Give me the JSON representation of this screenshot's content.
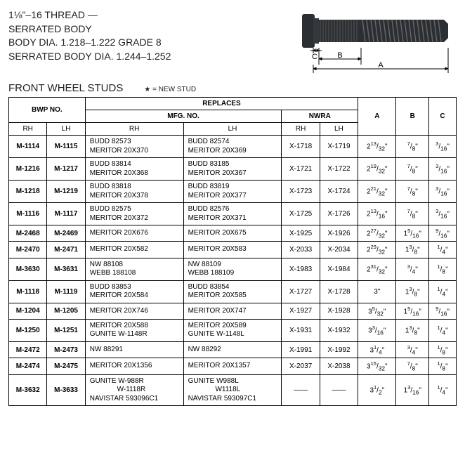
{
  "spec": {
    "line1": "1⅛\"–16 THREAD —",
    "line2": "SERRATED BODY",
    "line3": "BODY DIA. 1.218–1.222    GRADE 8",
    "line4": "SERRATED BODY DIA. 1.244–1.252"
  },
  "image": {
    "body_color": "#2b2f33",
    "highlight": "#4a4f55",
    "label_a": "A",
    "label_b": "B",
    "label_c": "C",
    "label_fontsize": 12
  },
  "section_title": "FRONT WHEEL STUDS",
  "legend": "★ = NEW STUD",
  "headers": {
    "replaces": "REPLACES",
    "bwp": "BWP NO.",
    "mfg": "MFG. NO.",
    "nwra": "NWRA",
    "rh": "RH",
    "lh": "LH",
    "a": "A",
    "b": "B",
    "c": "C"
  },
  "rows": [
    {
      "bwp_rh": "M-1114",
      "bwp_lh": "M-1115",
      "mfg_rh": "BUDD 82573\nMERITOR 20X370",
      "mfg_lh": "BUDD 82574\nMERITOR 20X369",
      "nwra_rh": "X-1718",
      "nwra_lh": "X-1719",
      "a": "2<sup>13</sup>/<sub>32</sub>\"",
      "b": "<sup>7</sup>/<sub>8</sub>\"",
      "c": "<sup>3</sup>/<sub>16</sub>\""
    },
    {
      "bwp_rh": "M-1216",
      "bwp_lh": "M-1217",
      "mfg_rh": "BUDD 83814\nMERITOR 20X368",
      "mfg_lh": "BUDD 83185\nMERITOR 20X367",
      "nwra_rh": "X-1721",
      "nwra_lh": "X-1722",
      "a": "2<sup>19</sup>/<sub>32</sub>\"",
      "b": "<sup>7</sup>/<sub>8</sub>\"",
      "c": "<sup>3</sup>/<sub>16</sub>\""
    },
    {
      "bwp_rh": "M-1218",
      "bwp_lh": "M-1219",
      "mfg_rh": "BUDD 83818\nMERITOR 20X378",
      "mfg_lh": "BUDD 83819\nMERITOR 20X377",
      "nwra_rh": "X-1723",
      "nwra_lh": "X-1724",
      "a": "2<sup>21</sup>/<sub>32</sub>\"",
      "b": "<sup>7</sup>/<sub>8</sub>\"",
      "c": "<sup>3</sup>/<sub>16</sub>\""
    },
    {
      "bwp_rh": "M-1116",
      "bwp_lh": "M-1117",
      "mfg_rh": "BUDD 82575\nMERITOR 20X372",
      "mfg_lh": "BUDD 82576\nMERITOR 20X371",
      "nwra_rh": "X-1725",
      "nwra_lh": "X-1726",
      "a": "2<sup>13</sup>/<sub>16</sub>\"",
      "b": "<sup>7</sup>/<sub>8</sub>\"",
      "c": "<sup>3</sup>/<sub>16</sub>\""
    },
    {
      "bwp_rh": "M-2468",
      "bwp_lh": "M-2469",
      "mfg_rh": "MERITOR 20X676",
      "mfg_lh": "MERITOR 20X675",
      "nwra_rh": "X-1925",
      "nwra_lh": "X-1926",
      "a": "2<sup>27</sup>/<sub>32</sub>\"",
      "b": "1<sup>5</sup>/<sub>16</sub>\"",
      "c": "<sup>9</sup>/<sub>16</sub>\""
    },
    {
      "bwp_rh": "M-2470",
      "bwp_lh": "M-2471",
      "mfg_rh": "MERITOR 20X582",
      "mfg_lh": "MERITOR 20X583",
      "nwra_rh": "X-2033",
      "nwra_lh": "X-2034",
      "a": "2<sup>29</sup>/<sub>32</sub>\"",
      "b": "1<sup>3</sup>/<sub>8</sub>\"",
      "c": "<sup>1</sup>/<sub>4</sub>\""
    },
    {
      "bwp_rh": "M-3630",
      "bwp_lh": "M-3631",
      "mfg_rh": "NW 88108\nWEBB 188108",
      "mfg_lh": "NW 88109\nWEBB 188109",
      "nwra_rh": "X-1983",
      "nwra_lh": "X-1984",
      "a": "2<sup>31</sup>/<sub>32</sub>\"",
      "b": "<sup>3</sup>/<sub>4</sub>\"",
      "c": "<sup>1</sup>/<sub>8</sub>\""
    },
    {
      "bwp_rh": "M-1118",
      "bwp_lh": "M-1119",
      "mfg_rh": "BUDD 83853\nMERITOR 20X584",
      "mfg_lh": "BUDD 83854\nMERITOR 20X585",
      "nwra_rh": "X-1727",
      "nwra_lh": "X-1728",
      "a": "3\"",
      "b": "1<sup>3</sup>/<sub>8</sub>\"",
      "c": "<sup>1</sup>/<sub>4</sub>\""
    },
    {
      "bwp_rh": "M-1204",
      "bwp_lh": "M-1205",
      "mfg_rh": "MERITOR 20X746",
      "mfg_lh": "MERITOR 20X747",
      "nwra_rh": "X-1927",
      "nwra_lh": "X-1928",
      "a": "3<sup>5</sup>/<sub>32</sub>\"",
      "b": "1<sup>5</sup>/<sub>16</sub>\"",
      "c": "<sup>9</sup>/<sub>16</sub>\""
    },
    {
      "bwp_rh": "M-1250",
      "bwp_lh": "M-1251",
      "mfg_rh": "MERITOR 20X588\nGUNITE W-1148R",
      "mfg_lh": "MERITOR 20X589\nGUNITE W-1148L",
      "nwra_rh": "X-1931",
      "nwra_lh": "X-1932",
      "a": "3<sup>3</sup>/<sub>16</sub>\"",
      "b": "1<sup>3</sup>/<sub>8</sub>\"",
      "c": "<sup>1</sup>/<sub>4</sub>\""
    },
    {
      "bwp_rh": "M-2472",
      "bwp_lh": "M-2473",
      "mfg_rh": "NW 88291",
      "mfg_lh": "NW 88292",
      "nwra_rh": "X-1991",
      "nwra_lh": "X-1992",
      "a": "3<sup>1</sup>/<sub>4</sub>\"",
      "b": "<sup>3</sup>/<sub>4</sub>\"",
      "c": "<sup>1</sup>/<sub>8</sub>\""
    },
    {
      "bwp_rh": "M-2474",
      "bwp_lh": "M-2475",
      "mfg_rh": "MERITOR 20X1356",
      "mfg_lh": "MERITOR 20X1357",
      "nwra_rh": "X-2037",
      "nwra_lh": "X-2038",
      "a": "3<sup>15</sup>/<sub>32</sub>\"",
      "b": "<sup>7</sup>/<sub>8</sub>\"",
      "c": "<sup>1</sup>/<sub>8</sub>\""
    },
    {
      "bwp_rh": "M-3632",
      "bwp_lh": "M-3633",
      "mfg_rh": "GUNITE W-988R\n              W-1118R\nNAVISTAR 593096C1",
      "mfg_lh": "GUNITE W988L\n              W1118L\nNAVISTAR 593097C1",
      "nwra_rh": "——",
      "nwra_lh": "——",
      "a": "3<sup>1</sup>/<sub>2</sub>\"",
      "b": "1<sup>3</sup>/<sub>16</sub>\"",
      "c": "<sup>1</sup>/<sub>4</sub>\""
    }
  ],
  "table_style": {
    "border_color": "#000000",
    "header_bg": "#ffffff",
    "row_bg": "#ffffff",
    "font_size_body": 10,
    "font_size_header": 10
  }
}
